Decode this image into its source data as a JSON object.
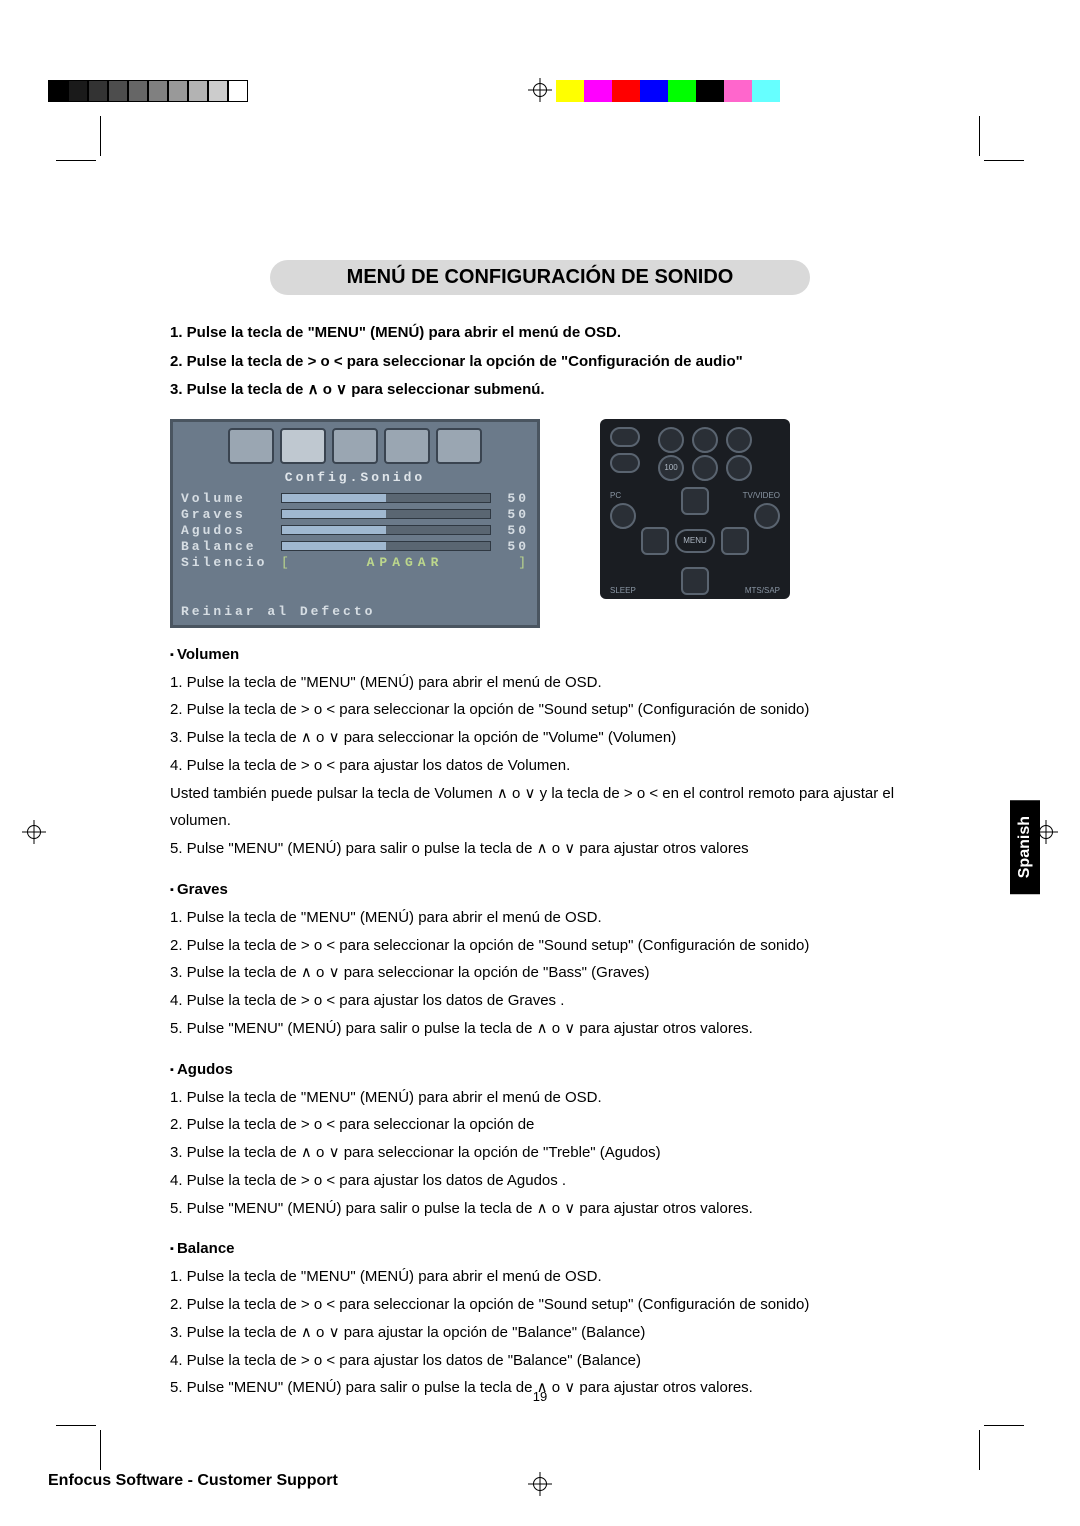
{
  "printBar": [
    "#000000",
    "#1a1a1a",
    "#333333",
    "#4d4d4d",
    "#666666",
    "#808080",
    "#999999",
    "#b3b3b3",
    "#cccccc",
    "#ffffff"
  ],
  "colorBar": [
    "#ffff00",
    "#ff00ff",
    "#ff0000",
    "#0000ff",
    "#00ff00",
    "#000000",
    "#ff66cc",
    "#66ffff"
  ],
  "title": "MENÚ DE CONFIGURACIÓN DE SONIDO",
  "intro": [
    "1. Pulse la tecla de \"MENU\" (MENÚ) para abrir el menú de OSD.",
    "2. Pulse la tecla de > o < para seleccionar la opción de \"Configuración de audio\"",
    "3. Pulse la tecla de ∧ o ∨ para seleccionar submenú."
  ],
  "osd": {
    "title": "Config.Sonido",
    "rows": [
      {
        "label": "Volume",
        "val": "50"
      },
      {
        "label": "Graves",
        "val": "50"
      },
      {
        "label": "Agudos",
        "val": "50"
      },
      {
        "label": "Balance",
        "val": "50"
      }
    ],
    "mute": {
      "label": "Silencio",
      "action": "APAGAR"
    },
    "footer": "Reiniar al Defecto"
  },
  "remote": {
    "menu": "MENU",
    "pc": "PC",
    "tv": "TV/VIDEO",
    "sleep": "SLEEP",
    "mts": "MTS/SAP",
    "hundred": "100"
  },
  "sections": [
    {
      "h": "Volumen",
      "steps": [
        "1. Pulse la tecla de \"MENU\" (MENÚ) para abrir el menú de OSD.",
        "2. Pulse la tecla de > o < para seleccionar la opción de \"Sound setup\" (Configuración de sonido)",
        "3. Pulse la tecla de ∧ o ∨ para seleccionar la opción de \"Volume\" (Volumen)",
        "4. Pulse la tecla de > o < para ajustar los datos de Volumen.",
        "Usted también puede pulsar la tecla de Volumen ∧ o ∨ y la tecla de > o < en el control remoto para ajustar el volumen.",
        "5. Pulse \"MENU\" (MENÚ) para salir o pulse la tecla de ∧ o ∨ para ajustar otros valores"
      ]
    },
    {
      "h": "Graves",
      "steps": [
        "1. Pulse la tecla de \"MENU\" (MENÚ) para abrir el menú de OSD.",
        "2. Pulse la tecla de > o < para seleccionar la opción de \"Sound setup\" (Configuración de sonido)",
        "3. Pulse la tecla de ∧ o ∨ para seleccionar la opción de \"Bass\" (Graves)",
        "4. Pulse la tecla de > o < para ajustar los datos de Graves .",
        "5. Pulse \"MENU\" (MENÚ) para salir o pulse la tecla de ∧ o ∨ para ajustar otros valores."
      ]
    },
    {
      "h": "Agudos",
      "steps": [
        "1. Pulse la tecla de \"MENU\" (MENÚ) para abrir el menú de OSD.",
        "2. Pulse la tecla de > o < para seleccionar la opción de",
        "3. Pulse la tecla de ∧ o ∨ para seleccionar la opción de \"Treble\" (Agudos)",
        "4. Pulse la tecla de > o < para ajustar los datos de Agudos .",
        "5. Pulse \"MENU\" (MENÚ) para salir o pulse la tecla de ∧ o ∨ para ajustar otros valores."
      ]
    },
    {
      "h": "Balance",
      "steps": [
        "1. Pulse la tecla de \"MENU\" (MENÚ) para abrir el menú de OSD.",
        "2. Pulse la tecla de > o < para seleccionar la opción de \"Sound setup\" (Configuración de sonido)",
        "3. Pulse la tecla de ∧ o ∨ para ajustar la opción de \"Balance\" (Balance)",
        "4. Pulse la tecla de > o < para ajustar los datos de \"Balance\" (Balance)",
        "5. Pulse \"MENU\" (MENÚ) para salir o pulse la tecla de ∧ o ∨ para ajustar otros valores."
      ]
    }
  ],
  "sideTab": "Spanish",
  "pageNum": "19",
  "footer": "Enfocus Software - Customer Support"
}
